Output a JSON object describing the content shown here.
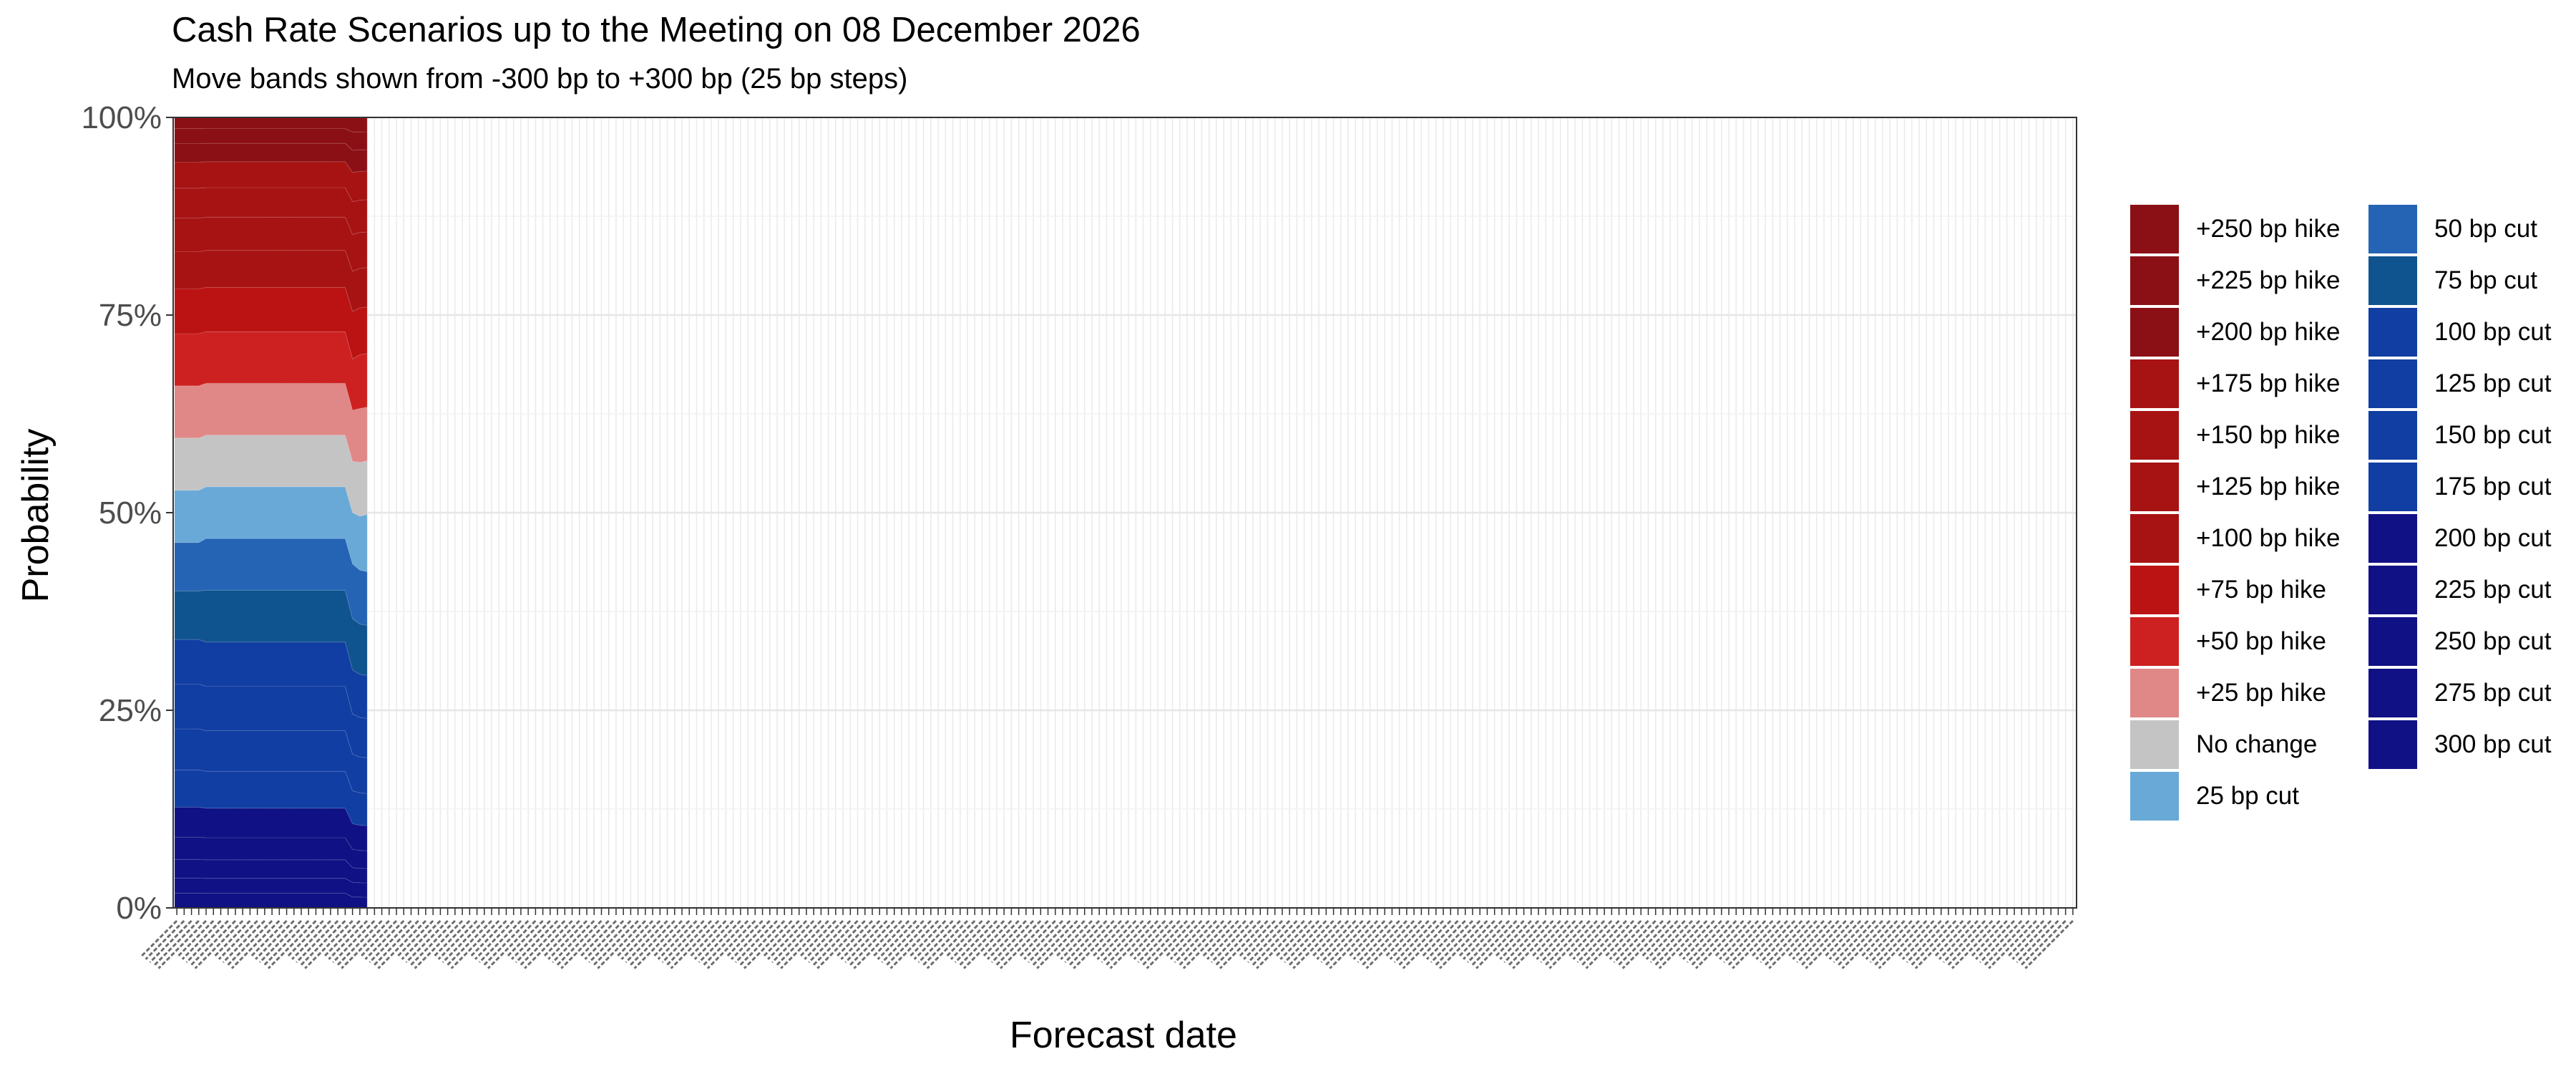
{
  "chart_data": {
    "type": "area",
    "title": "Cash Rate Scenarios up to the Meeting on 08 December 2026",
    "subtitle": "Move bands shown from -300 bp to +300 bp (25 bp steps)",
    "xlabel": "Forecast date",
    "ylabel": "Probability",
    "y_ticks": [
      "0%",
      "25%",
      "50%",
      "75%",
      "100%"
    ],
    "ylim": [
      0,
      1
    ],
    "stacking": "fill",
    "x_count": 260,
    "data_count": 26,
    "x_tick_labels": "illegible (one tick per forecast date, rotated labels overlapping)",
    "grid": true,
    "legend_position": "right",
    "legend": [
      {
        "label": "+250 bp hike",
        "color": "#8b1016"
      },
      {
        "label": "+225 bp hike",
        "color": "#8b1016"
      },
      {
        "label": "+200 bp hike",
        "color": "#8b1016"
      },
      {
        "label": "+175 bp hike",
        "color": "#a71212"
      },
      {
        "label": "+150 bp hike",
        "color": "#a71212"
      },
      {
        "label": "+125 bp hike",
        "color": "#a71212"
      },
      {
        "label": "+100 bp hike",
        "color": "#a71212"
      },
      {
        "label": "+75 bp hike",
        "color": "#bb1313"
      },
      {
        "label": "+50 bp hike",
        "color": "#cd2020"
      },
      {
        "label": "+25 bp hike",
        "color": "#e08787"
      },
      {
        "label": "No change",
        "color": "#c4c4c4"
      },
      {
        "label": "25 bp cut",
        "color": "#68a9d8"
      },
      {
        "label": "50 bp cut",
        "color": "#2564b5"
      },
      {
        "label": "75 bp cut",
        "color": "#0f538f"
      },
      {
        "label": "100 bp cut",
        "color": "#113ea3"
      },
      {
        "label": "125 bp cut",
        "color": "#113ea3"
      },
      {
        "label": "150 bp cut",
        "color": "#113ea3"
      },
      {
        "label": "175 bp cut",
        "color": "#113ea3"
      },
      {
        "label": "200 bp cut",
        "color": "#0f1185"
      },
      {
        "label": "225 bp cut",
        "color": "#0f1185"
      },
      {
        "label": "250 bp cut",
        "color": "#0f1185"
      },
      {
        "label": "275 bp cut",
        "color": "#0f1185"
      },
      {
        "label": "300 bp cut",
        "color": "#0f1185"
      }
    ],
    "series": [
      {
        "key": "300 bp cut",
        "color": "#0f1185",
        "values": [
          0.02,
          0.02,
          0.02,
          0.02,
          0.02,
          0.02,
          0.02,
          0.02,
          0.02,
          0.02,
          0.02,
          0.02,
          0.02,
          0.02,
          0.02,
          0.02,
          0.02,
          0.02,
          0.02,
          0.02,
          0.02,
          0.02,
          0.02,
          0.015,
          0.015,
          0.015
        ]
      },
      {
        "key": "275 bp cut",
        "color": "#0f1185",
        "values": [
          0.02,
          0.02,
          0.02,
          0.02,
          0.02,
          0.02,
          0.02,
          0.02,
          0.02,
          0.02,
          0.02,
          0.02,
          0.02,
          0.02,
          0.02,
          0.02,
          0.02,
          0.02,
          0.02,
          0.02,
          0.02,
          0.02,
          0.02,
          0.02,
          0.02,
          0.02
        ]
      },
      {
        "key": "250 bp cut",
        "color": "#0f1185",
        "values": [
          0.025,
          0.025,
          0.025,
          0.025,
          0.025,
          0.025,
          0.025,
          0.025,
          0.025,
          0.025,
          0.025,
          0.025,
          0.025,
          0.025,
          0.025,
          0.025,
          0.025,
          0.025,
          0.025,
          0.025,
          0.025,
          0.025,
          0.025,
          0.02,
          0.02,
          0.02
        ]
      },
      {
        "key": "225 bp cut",
        "color": "#0f1185",
        "values": [
          0.03,
          0.03,
          0.03,
          0.03,
          0.03,
          0.03,
          0.03,
          0.03,
          0.03,
          0.03,
          0.03,
          0.03,
          0.03,
          0.03,
          0.03,
          0.03,
          0.03,
          0.03,
          0.03,
          0.03,
          0.03,
          0.03,
          0.03,
          0.025,
          0.025,
          0.025
        ]
      },
      {
        "key": "200 bp cut",
        "color": "#0f1185",
        "values": [
          0.04,
          0.04,
          0.04,
          0.04,
          0.04,
          0.04,
          0.04,
          0.04,
          0.04,
          0.04,
          0.04,
          0.04,
          0.04,
          0.04,
          0.04,
          0.04,
          0.04,
          0.04,
          0.04,
          0.04,
          0.04,
          0.04,
          0.04,
          0.035,
          0.035,
          0.035
        ]
      },
      {
        "key": "175 bp cut",
        "color": "#113ea3",
        "values": [
          0.05,
          0.05,
          0.05,
          0.05,
          0.05,
          0.05,
          0.05,
          0.05,
          0.05,
          0.05,
          0.05,
          0.05,
          0.05,
          0.05,
          0.05,
          0.05,
          0.05,
          0.05,
          0.05,
          0.05,
          0.05,
          0.05,
          0.05,
          0.045,
          0.045,
          0.045
        ]
      },
      {
        "key": "150 bp cut",
        "color": "#113ea3",
        "values": [
          0.055,
          0.055,
          0.055,
          0.055,
          0.055,
          0.055,
          0.055,
          0.055,
          0.055,
          0.055,
          0.055,
          0.055,
          0.055,
          0.055,
          0.055,
          0.055,
          0.055,
          0.055,
          0.055,
          0.055,
          0.055,
          0.055,
          0.055,
          0.05,
          0.05,
          0.05
        ]
      },
      {
        "key": "125 bp cut",
        "color": "#113ea3",
        "values": [
          0.06,
          0.06,
          0.06,
          0.06,
          0.06,
          0.06,
          0.06,
          0.06,
          0.06,
          0.06,
          0.06,
          0.06,
          0.06,
          0.06,
          0.06,
          0.06,
          0.06,
          0.06,
          0.06,
          0.06,
          0.06,
          0.06,
          0.06,
          0.055,
          0.055,
          0.055
        ]
      },
      {
        "key": "100 bp cut",
        "color": "#113ea3",
        "values": [
          0.06,
          0.06,
          0.06,
          0.06,
          0.06,
          0.06,
          0.06,
          0.06,
          0.06,
          0.06,
          0.06,
          0.06,
          0.06,
          0.06,
          0.06,
          0.06,
          0.06,
          0.06,
          0.06,
          0.06,
          0.06,
          0.06,
          0.06,
          0.06,
          0.06,
          0.06
        ]
      },
      {
        "key": "75 bp cut",
        "color": "#0f538f",
        "values": [
          0.065,
          0.065,
          0.065,
          0.07,
          0.07,
          0.07,
          0.07,
          0.07,
          0.07,
          0.07,
          0.07,
          0.07,
          0.07,
          0.07,
          0.07,
          0.07,
          0.07,
          0.07,
          0.07,
          0.07,
          0.07,
          0.07,
          0.07,
          0.07,
          0.07,
          0.07
        ]
      },
      {
        "key": "50 bp cut",
        "color": "#2564b5",
        "values": [
          0.065,
          0.065,
          0.065,
          0.07,
          0.07,
          0.07,
          0.07,
          0.07,
          0.07,
          0.07,
          0.07,
          0.07,
          0.07,
          0.07,
          0.07,
          0.07,
          0.07,
          0.07,
          0.07,
          0.07,
          0.07,
          0.07,
          0.07,
          0.075,
          0.075,
          0.075
        ]
      },
      {
        "key": "25 bp cut",
        "color": "#68a9d8",
        "values": [
          0.07,
          0.07,
          0.07,
          0.07,
          0.07,
          0.07,
          0.07,
          0.07,
          0.07,
          0.07,
          0.07,
          0.07,
          0.07,
          0.07,
          0.07,
          0.07,
          0.07,
          0.07,
          0.07,
          0.07,
          0.07,
          0.07,
          0.07,
          0.07,
          0.075,
          0.08
        ]
      },
      {
        "key": "No change",
        "color": "#c4c4c4",
        "values": [
          0.07,
          0.07,
          0.07,
          0.07,
          0.07,
          0.07,
          0.07,
          0.07,
          0.07,
          0.07,
          0.07,
          0.07,
          0.07,
          0.07,
          0.07,
          0.07,
          0.07,
          0.07,
          0.07,
          0.07,
          0.07,
          0.07,
          0.07,
          0.07,
          0.075,
          0.075
        ]
      },
      {
        "key": "+25 bp hike",
        "color": "#e08787",
        "values": [
          0.07,
          0.07,
          0.07,
          0.07,
          0.07,
          0.07,
          0.07,
          0.07,
          0.07,
          0.07,
          0.07,
          0.07,
          0.07,
          0.07,
          0.07,
          0.07,
          0.07,
          0.07,
          0.07,
          0.07,
          0.07,
          0.07,
          0.07,
          0.07,
          0.075,
          0.075
        ]
      },
      {
        "key": "+50 bp hike",
        "color": "#cd2020",
        "values": [
          0.07,
          0.07,
          0.07,
          0.07,
          0.07,
          0.07,
          0.07,
          0.07,
          0.07,
          0.07,
          0.07,
          0.07,
          0.07,
          0.07,
          0.07,
          0.07,
          0.07,
          0.07,
          0.07,
          0.07,
          0.07,
          0.07,
          0.07,
          0.07,
          0.075,
          0.075
        ]
      },
      {
        "key": "+75 bp hike",
        "color": "#bb1313",
        "values": [
          0.06,
          0.06,
          0.06,
          0.06,
          0.06,
          0.06,
          0.06,
          0.06,
          0.06,
          0.06,
          0.06,
          0.06,
          0.06,
          0.06,
          0.06,
          0.06,
          0.06,
          0.06,
          0.06,
          0.06,
          0.06,
          0.06,
          0.06,
          0.065,
          0.065,
          0.065
        ]
      },
      {
        "key": "+100 bp hike",
        "color": "#a71212",
        "values": [
          0.05,
          0.05,
          0.05,
          0.05,
          0.05,
          0.05,
          0.05,
          0.05,
          0.05,
          0.05,
          0.05,
          0.05,
          0.05,
          0.05,
          0.05,
          0.05,
          0.05,
          0.05,
          0.05,
          0.05,
          0.05,
          0.05,
          0.05,
          0.055,
          0.055,
          0.055
        ]
      },
      {
        "key": "+125 bp hike",
        "color": "#a71212",
        "values": [
          0.045,
          0.045,
          0.045,
          0.045,
          0.045,
          0.045,
          0.045,
          0.045,
          0.045,
          0.045,
          0.045,
          0.045,
          0.045,
          0.045,
          0.045,
          0.045,
          0.045,
          0.045,
          0.045,
          0.045,
          0.045,
          0.045,
          0.045,
          0.05,
          0.05,
          0.05
        ]
      },
      {
        "key": "+150 bp hike",
        "color": "#a71212",
        "values": [
          0.04,
          0.04,
          0.04,
          0.04,
          0.04,
          0.04,
          0.04,
          0.04,
          0.04,
          0.04,
          0.04,
          0.04,
          0.04,
          0.04,
          0.04,
          0.04,
          0.04,
          0.04,
          0.04,
          0.04,
          0.04,
          0.04,
          0.04,
          0.045,
          0.045,
          0.045
        ]
      },
      {
        "key": "+175 bp hike",
        "color": "#a71212",
        "values": [
          0.035,
          0.035,
          0.035,
          0.035,
          0.035,
          0.035,
          0.035,
          0.035,
          0.035,
          0.035,
          0.035,
          0.035,
          0.035,
          0.035,
          0.035,
          0.035,
          0.035,
          0.035,
          0.035,
          0.035,
          0.035,
          0.035,
          0.035,
          0.04,
          0.04,
          0.04
        ]
      },
      {
        "key": "+200 bp hike",
        "color": "#8b1016",
        "values": [
          0.025,
          0.025,
          0.025,
          0.025,
          0.025,
          0.025,
          0.025,
          0.025,
          0.025,
          0.025,
          0.025,
          0.025,
          0.025,
          0.025,
          0.025,
          0.025,
          0.025,
          0.025,
          0.025,
          0.025,
          0.025,
          0.025,
          0.025,
          0.03,
          0.03,
          0.03
        ]
      },
      {
        "key": "+225 bp hike",
        "color": "#8b1016",
        "values": [
          0.02,
          0.02,
          0.02,
          0.02,
          0.02,
          0.02,
          0.02,
          0.02,
          0.02,
          0.02,
          0.02,
          0.02,
          0.02,
          0.02,
          0.02,
          0.02,
          0.02,
          0.02,
          0.02,
          0.02,
          0.02,
          0.02,
          0.02,
          0.025,
          0.025,
          0.025
        ]
      },
      {
        "key": "+250 bp hike",
        "color": "#8b1016",
        "values": [
          0.015,
          0.015,
          0.015,
          0.015,
          0.015,
          0.015,
          0.015,
          0.015,
          0.015,
          0.015,
          0.015,
          0.015,
          0.015,
          0.015,
          0.015,
          0.015,
          0.015,
          0.015,
          0.015,
          0.015,
          0.015,
          0.015,
          0.015,
          0.02,
          0.02,
          0.02
        ]
      }
    ]
  }
}
